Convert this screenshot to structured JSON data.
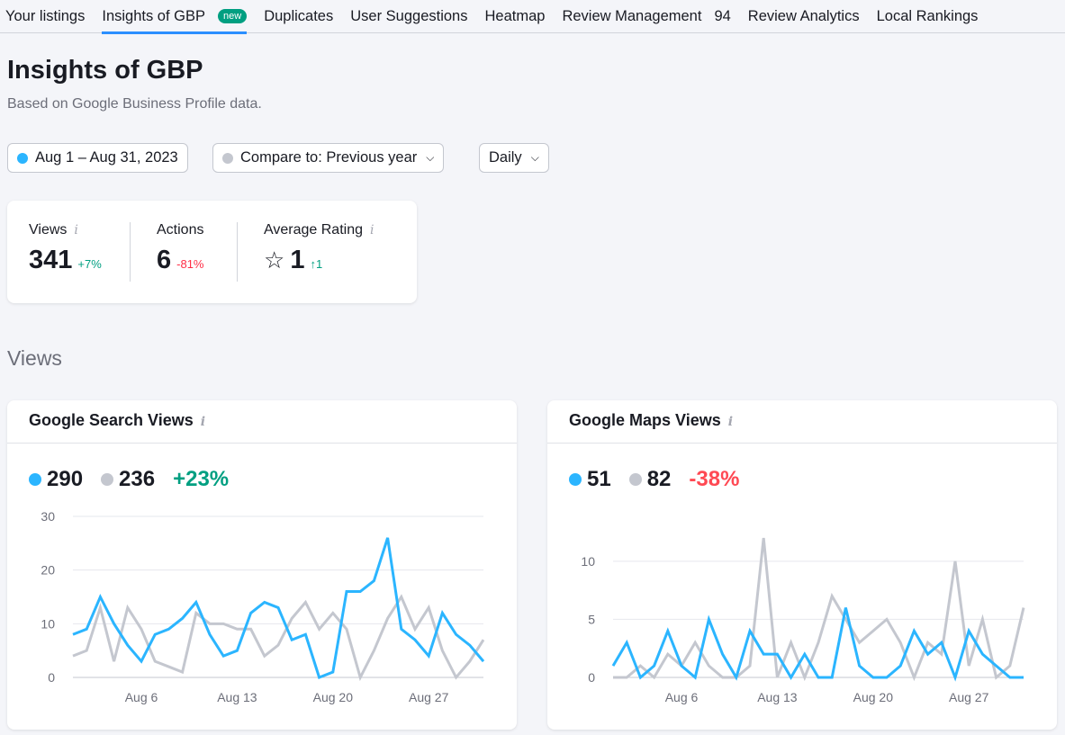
{
  "tabs": [
    {
      "label": "Your listings"
    },
    {
      "label": "Insights of GBP",
      "badge": "new",
      "active": true
    },
    {
      "label": "Duplicates"
    },
    {
      "label": "User Suggestions"
    },
    {
      "label": "Heatmap"
    },
    {
      "label": "Review Management",
      "count": "94"
    },
    {
      "label": "Review Analytics"
    },
    {
      "label": "Local Rankings"
    }
  ],
  "page": {
    "title": "Insights of GBP",
    "subtitle": "Based on Google Business Profile data."
  },
  "controls": {
    "date_range": "Aug 1 – Aug 31, 2023",
    "compare": "Compare to: Previous year",
    "granularity": "Daily"
  },
  "kpis": [
    {
      "label": "Views",
      "value": "341",
      "delta": "+7%"
    },
    {
      "label": "Actions",
      "value": "6",
      "delta": "-81%"
    },
    {
      "label": "Average Rating",
      "value": "1",
      "delta": "↑1"
    }
  ],
  "colors": {
    "current": "#2bb5ff",
    "previous": "#c4c7cf",
    "positive": "#009f81",
    "negative": "#ff4953"
  },
  "section_title": "Views",
  "chart_data": [
    {
      "type": "line",
      "title": "Google Search Views",
      "total_current": "290",
      "total_previous": "236",
      "change": "+23%",
      "ylim": [
        0,
        30
      ],
      "yticks": [
        "0",
        "10",
        "20",
        "30"
      ],
      "xticks": [
        {
          "i": 5,
          "label": "Aug 6"
        },
        {
          "i": 12,
          "label": "Aug 13"
        },
        {
          "i": 19,
          "label": "Aug 20"
        },
        {
          "i": 26,
          "label": "Aug 27"
        }
      ],
      "series": [
        {
          "name": "Aug 1 – Aug 31, 2023",
          "values": [
            8,
            9,
            15,
            10,
            6,
            3,
            8,
            9,
            11,
            14,
            8,
            4,
            5,
            12,
            14,
            13,
            7,
            8,
            0,
            1,
            16,
            16,
            18,
            26,
            9,
            7,
            4,
            12,
            8,
            6,
            3
          ]
        },
        {
          "name": "Previous year",
          "values": [
            4,
            5,
            13,
            3,
            13,
            9,
            3,
            2,
            1,
            12,
            10,
            10,
            9,
            9,
            4,
            6,
            11,
            14,
            9,
            12,
            9,
            0,
            5,
            11,
            15,
            9,
            13,
            5,
            0,
            3,
            7
          ]
        }
      ]
    },
    {
      "type": "line",
      "title": "Google Maps Views",
      "total_current": "51",
      "total_previous": "82",
      "change": "-38%",
      "ylim": [
        0,
        12
      ],
      "yticks": [
        "0",
        "5",
        "10"
      ],
      "xticks": [
        {
          "i": 5,
          "label": "Aug 6"
        },
        {
          "i": 12,
          "label": "Aug 13"
        },
        {
          "i": 19,
          "label": "Aug 20"
        },
        {
          "i": 26,
          "label": "Aug 27"
        }
      ],
      "series": [
        {
          "name": "Aug 1 – Aug 31, 2023",
          "values": [
            1,
            3,
            0,
            1,
            4,
            1,
            0,
            5,
            2,
            0,
            4,
            2,
            2,
            0,
            2,
            0,
            0,
            6,
            1,
            0,
            0,
            1,
            4,
            2,
            3,
            0,
            4,
            2,
            1,
            0,
            0
          ]
        },
        {
          "name": "Previous year",
          "values": [
            0,
            0,
            1,
            0,
            2,
            1,
            3,
            1,
            0,
            0,
            1,
            12,
            0,
            3,
            0,
            3,
            7,
            5,
            3,
            4,
            5,
            3,
            0,
            3,
            2,
            10,
            1,
            5,
            0,
            1,
            6
          ]
        }
      ]
    }
  ]
}
